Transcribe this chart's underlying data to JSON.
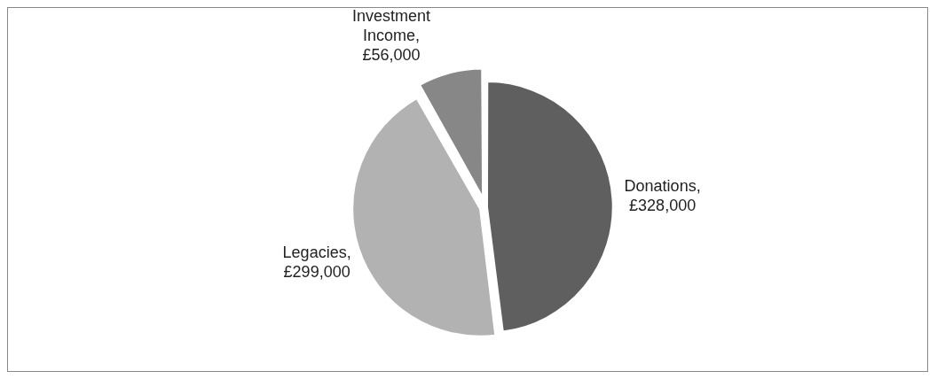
{
  "chart_data": {
    "type": "pie",
    "categories": [
      "Donations",
      "Legacies",
      "Investment Income"
    ],
    "values": [
      328000,
      299000,
      56000
    ],
    "value_labels": [
      ", £328,000",
      ", £299,000",
      ", £56,000"
    ],
    "colors": [
      "#5f5f5f",
      "#b2b2b2",
      "#878787"
    ],
    "legend": false
  }
}
